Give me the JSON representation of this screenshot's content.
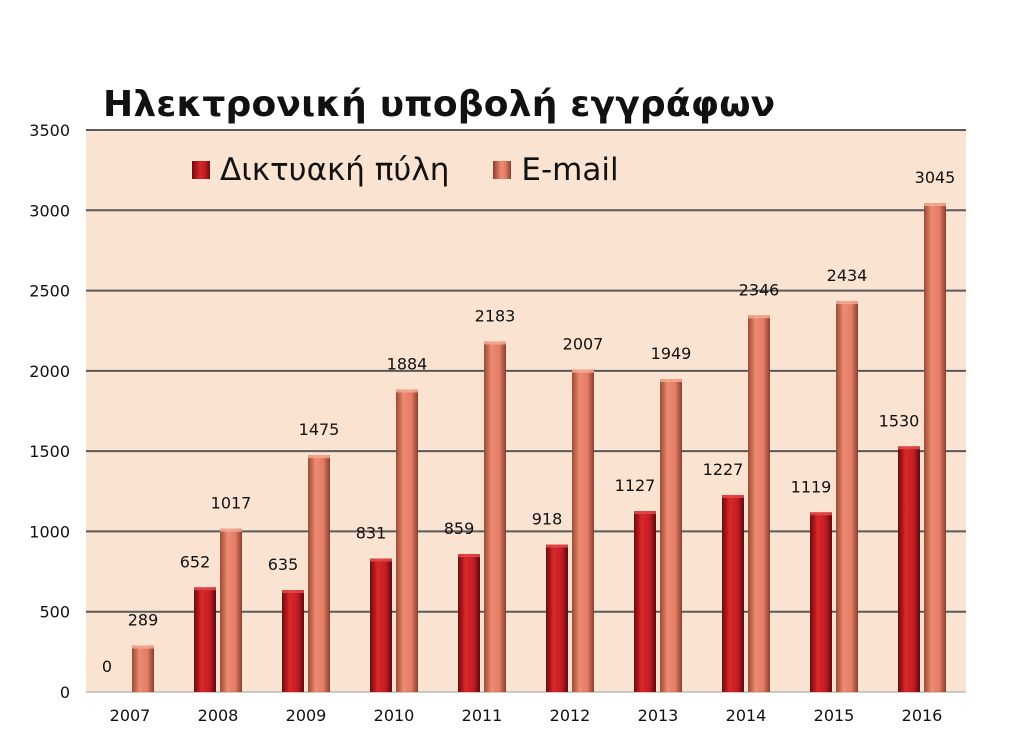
{
  "chart_data": {
    "type": "bar",
    "title": "Ηλεκτρονική υποβολή εγγράφων",
    "categories": [
      "2007",
      "2008",
      "2009",
      "2010",
      "2011",
      "2012",
      "2013",
      "2014",
      "2015",
      "2016"
    ],
    "series": [
      {
        "name": "Δικτυακή πύλη",
        "values": [
          0,
          652,
          635,
          831,
          859,
          918,
          1127,
          1227,
          1119,
          1530
        ]
      },
      {
        "name": "E-mail",
        "values": [
          289,
          1017,
          1475,
          1884,
          2183,
          2007,
          1949,
          2346,
          2434,
          3045
        ]
      }
    ],
    "ylim": [
      0,
      3500
    ],
    "yticks": [
      0,
      500,
      1000,
      1500,
      2000,
      2500,
      3000,
      3500
    ],
    "grid": true,
    "legend_position": "top-left",
    "colors": {
      "portal": "#c91f25",
      "portal_dark": "#6e0c0c",
      "email": "#e88068",
      "email_dark": "#8b3e2d",
      "plot_bg": "#fbe3d1",
      "grid": "#555555"
    }
  }
}
